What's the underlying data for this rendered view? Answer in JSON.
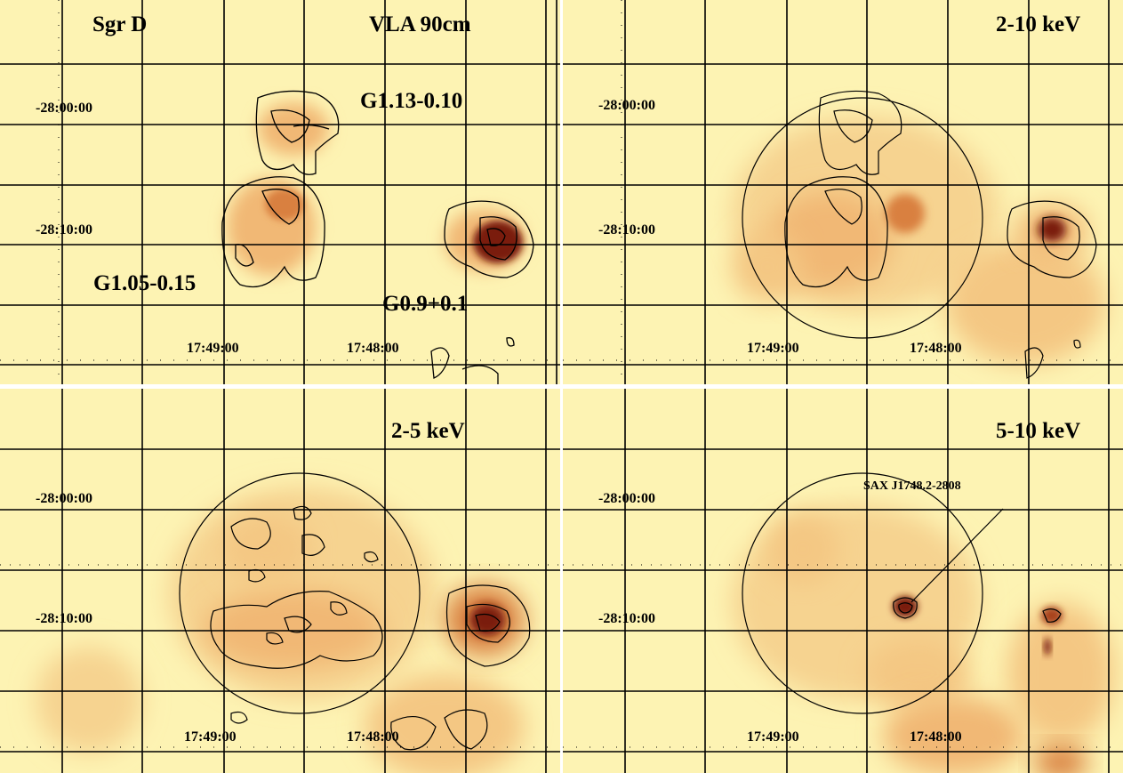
{
  "panels": [
    {
      "band": "VLA 90cm",
      "region": "Sgr D",
      "sources": [
        "G1.13-0.10",
        "G1.05-0.15",
        "G0.9+0.1"
      ],
      "dec_ticks": [
        "-28:00:00",
        "-28:10:00"
      ],
      "ra_ticks": [
        "17:49:00",
        "17:48:00"
      ]
    },
    {
      "band": "2-10 keV",
      "dec_ticks": [
        "-28:00:00",
        "-28:10:00"
      ],
      "ra_ticks": [
        "17:49:00",
        "17:48:00"
      ]
    },
    {
      "band": "2-5 keV",
      "dec_ticks": [
        "-28:00:00",
        "-28:10:00"
      ],
      "ra_ticks": [
        "17:49:00",
        "17:48:00"
      ]
    },
    {
      "band": "5-10 keV",
      "sources": [
        "SAX J1748.2-2808"
      ],
      "dec_ticks": [
        "-28:00:00",
        "-28:10:00"
      ],
      "ra_ticks": [
        "17:49:00",
        "17:48:00"
      ]
    }
  ],
  "colors": {
    "background": "#fdf3b3",
    "emission_low": "#f1b874",
    "emission_mid": "#d98040",
    "emission_high": "#7a1f0c",
    "grid": "#000000"
  }
}
